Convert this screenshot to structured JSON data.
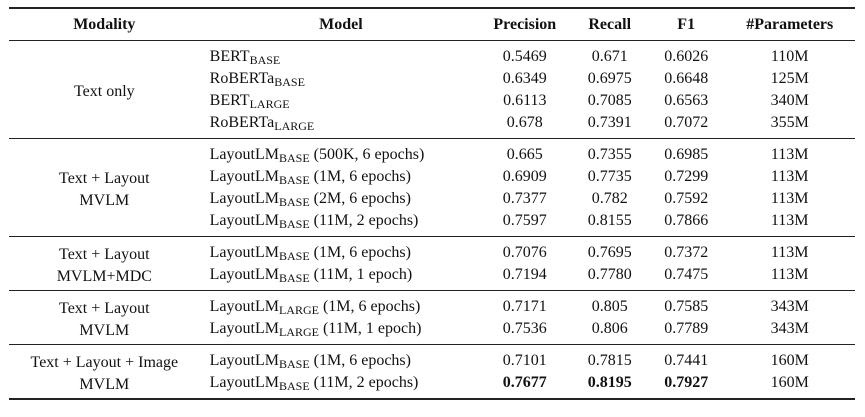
{
  "headers": [
    "Modality",
    "Model",
    "Precision",
    "Recall",
    "F1",
    "#Parameters"
  ],
  "groups": [
    {
      "modality": [
        "Text only"
      ],
      "rows": [
        {
          "base": "BERT",
          "sub": "BASE",
          "suffix": "",
          "precision": "0.5469",
          "recall": "0.671",
          "f1": "0.6026",
          "params": "110M"
        },
        {
          "base": "RoBERTa",
          "sub": "BASE",
          "suffix": "",
          "precision": "0.6349",
          "recall": "0.6975",
          "f1": "0.6648",
          "params": "125M"
        },
        {
          "base": "BERT",
          "sub": "LARGE",
          "suffix": "",
          "precision": "0.6113",
          "recall": "0.7085",
          "f1": "0.6563",
          "params": "340M"
        },
        {
          "base": "RoBERTa",
          "sub": "LARGE",
          "suffix": "",
          "precision": "0.678",
          "recall": "0.7391",
          "f1": "0.7072",
          "params": "355M"
        }
      ]
    },
    {
      "modality": [
        "Text + Layout",
        "MVLM"
      ],
      "rows": [
        {
          "base": "LayoutLM",
          "sub": "BASE",
          "suffix": " (500K, 6 epochs)",
          "precision": "0.665",
          "recall": "0.7355",
          "f1": "0.6985",
          "params": "113M"
        },
        {
          "base": "LayoutLM",
          "sub": "BASE",
          "suffix": " (1M, 6 epochs)",
          "precision": "0.6909",
          "recall": "0.7735",
          "f1": "0.7299",
          "params": "113M"
        },
        {
          "base": "LayoutLM",
          "sub": "BASE",
          "suffix": " (2M, 6 epochs)",
          "precision": "0.7377",
          "recall": "0.782",
          "f1": "0.7592",
          "params": "113M"
        },
        {
          "base": "LayoutLM",
          "sub": "BASE",
          "suffix": " (11M, 2 epochs)",
          "precision": "0.7597",
          "recall": "0.8155",
          "f1": "0.7866",
          "params": "113M"
        }
      ]
    },
    {
      "modality": [
        "Text + Layout",
        "MVLM+MDC"
      ],
      "rows": [
        {
          "base": "LayoutLM",
          "sub": "BASE",
          "suffix": " (1M, 6 epochs)",
          "precision": "0.7076",
          "recall": "0.7695",
          "f1": "0.7372",
          "params": "113M"
        },
        {
          "base": "LayoutLM",
          "sub": "BASE",
          "suffix": " (11M, 1 epoch)",
          "precision": "0.7194",
          "recall": "0.7780",
          "f1": "0.7475",
          "params": "113M"
        }
      ]
    },
    {
      "modality": [
        "Text + Layout",
        "MVLM"
      ],
      "rows": [
        {
          "base": "LayoutLM",
          "sub": "LARGE",
          "suffix": " (1M, 6 epochs)",
          "precision": "0.7171",
          "recall": "0.805",
          "f1": "0.7585",
          "params": "343M"
        },
        {
          "base": "LayoutLM",
          "sub": "LARGE",
          "suffix": " (11M, 1 epoch)",
          "precision": "0.7536",
          "recall": "0.806",
          "f1": "0.7789",
          "params": "343M"
        }
      ]
    },
    {
      "modality": [
        "Text + Layout + Image",
        "MVLM"
      ],
      "rows": [
        {
          "base": "LayoutLM",
          "sub": "BASE",
          "suffix": " (1M, 6 epochs)",
          "precision": "0.7101",
          "recall": "0.7815",
          "f1": "0.7441",
          "params": "160M"
        },
        {
          "base": "LayoutLM",
          "sub": "BASE",
          "suffix": " (11M, 2 epochs)",
          "precision": "0.7677",
          "recall": "0.8195",
          "f1": "0.7927",
          "params": "160M",
          "bold_metrics": true
        }
      ]
    }
  ]
}
